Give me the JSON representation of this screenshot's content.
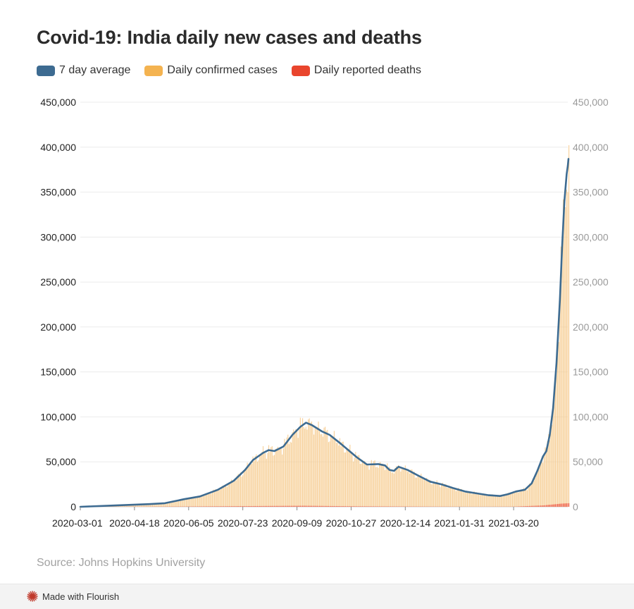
{
  "chart_data": {
    "type": "bar+line",
    "title": "Covid-19: India daily new cases and deaths",
    "source": "Source: Johns Hopkins University",
    "legend": [
      {
        "name": "7 day average",
        "color": "#3d6b91"
      },
      {
        "name": "Daily confirmed cases",
        "color": "#f4b350"
      },
      {
        "name": "Daily reported deaths",
        "color": "#e9452d"
      }
    ],
    "ylim": [
      0,
      450000
    ],
    "y_ticks": [
      {
        "value": 0,
        "label": "0"
      },
      {
        "value": 50000,
        "label": "50,000"
      },
      {
        "value": 100000,
        "label": "100,000"
      },
      {
        "value": 150000,
        "label": "150,000"
      },
      {
        "value": 200000,
        "label": "200,000"
      },
      {
        "value": 250000,
        "label": "250,000"
      },
      {
        "value": 300000,
        "label": "300,000"
      },
      {
        "value": 350000,
        "label": "350,000"
      },
      {
        "value": 400000,
        "label": "400,000"
      },
      {
        "value": 450000,
        "label": "450,000"
      }
    ],
    "x_range": [
      "2020-03-01",
      "2021-05-07"
    ],
    "x_ticks": [
      "2020-03-01",
      "2020-04-18",
      "2020-06-05",
      "2020-07-23",
      "2020-09-09",
      "2020-10-27",
      "2020-12-14",
      "2021-01-31",
      "2021-03-20"
    ],
    "series_7day_avg": [
      {
        "date": "2020-03-01",
        "value": 0
      },
      {
        "date": "2020-04-01",
        "value": 1500
      },
      {
        "date": "2020-05-01",
        "value": 3000
      },
      {
        "date": "2020-05-15",
        "value": 4000
      },
      {
        "date": "2020-06-01",
        "value": 8500
      },
      {
        "date": "2020-06-15",
        "value": 11500
      },
      {
        "date": "2020-07-01",
        "value": 19000
      },
      {
        "date": "2020-07-15",
        "value": 29000
      },
      {
        "date": "2020-07-25",
        "value": 41000
      },
      {
        "date": "2020-08-01",
        "value": 52000
      },
      {
        "date": "2020-08-10",
        "value": 60000
      },
      {
        "date": "2020-08-15",
        "value": 63000
      },
      {
        "date": "2020-08-20",
        "value": 62000
      },
      {
        "date": "2020-08-28",
        "value": 67000
      },
      {
        "date": "2020-09-05",
        "value": 80000
      },
      {
        "date": "2020-09-12",
        "value": 89000
      },
      {
        "date": "2020-09-17",
        "value": 93500
      },
      {
        "date": "2020-09-22",
        "value": 91000
      },
      {
        "date": "2020-10-01",
        "value": 84000
      },
      {
        "date": "2020-10-08",
        "value": 80000
      },
      {
        "date": "2020-10-18",
        "value": 70000
      },
      {
        "date": "2020-11-01",
        "value": 55000
      },
      {
        "date": "2020-11-10",
        "value": 47000
      },
      {
        "date": "2020-11-20",
        "value": 47500
      },
      {
        "date": "2020-11-26",
        "value": 46000
      },
      {
        "date": "2020-11-30",
        "value": 41000
      },
      {
        "date": "2020-12-04",
        "value": 40000
      },
      {
        "date": "2020-12-08",
        "value": 44500
      },
      {
        "date": "2020-12-16",
        "value": 41000
      },
      {
        "date": "2020-12-25",
        "value": 35000
      },
      {
        "date": "2021-01-05",
        "value": 28000
      },
      {
        "date": "2021-01-15",
        "value": 25000
      },
      {
        "date": "2021-01-25",
        "value": 21000
      },
      {
        "date": "2021-02-05",
        "value": 17000
      },
      {
        "date": "2021-02-15",
        "value": 15000
      },
      {
        "date": "2021-02-25",
        "value": 13000
      },
      {
        "date": "2021-03-08",
        "value": 12000
      },
      {
        "date": "2021-03-15",
        "value": 14000
      },
      {
        "date": "2021-03-22",
        "value": 17000
      },
      {
        "date": "2021-03-30",
        "value": 19000
      },
      {
        "date": "2021-04-05",
        "value": 26000
      },
      {
        "date": "2021-04-10",
        "value": 40000
      },
      {
        "date": "2021-04-15",
        "value": 56000
      },
      {
        "date": "2021-04-18",
        "value": 62000
      },
      {
        "date": "2021-04-21",
        "value": 80000
      },
      {
        "date": "2021-04-24",
        "value": 110000
      },
      {
        "date": "2021-04-27",
        "value": 160000
      },
      {
        "date": "2021-04-30",
        "value": 230000
      },
      {
        "date": "2021-05-02",
        "value": 290000
      },
      {
        "date": "2021-05-04",
        "value": 340000
      },
      {
        "date": "2021-05-06",
        "value": 370000
      },
      {
        "date": "2021-05-07",
        "value": 379000
      },
      {
        "date": "2021-05-09",
        "value": 387000
      }
    ],
    "series_daily_deaths": [
      {
        "date": "2020-03-01",
        "value": 0
      },
      {
        "date": "2020-06-01",
        "value": 300
      },
      {
        "date": "2020-08-01",
        "value": 800
      },
      {
        "date": "2020-09-15",
        "value": 1150
      },
      {
        "date": "2020-11-01",
        "value": 550
      },
      {
        "date": "2021-01-01",
        "value": 250
      },
      {
        "date": "2021-02-15",
        "value": 100
      },
      {
        "date": "2021-03-20",
        "value": 200
      },
      {
        "date": "2021-04-15",
        "value": 1500
      },
      {
        "date": "2021-05-01",
        "value": 3500
      },
      {
        "date": "2021-05-09",
        "value": 4100
      }
    ]
  }
}
